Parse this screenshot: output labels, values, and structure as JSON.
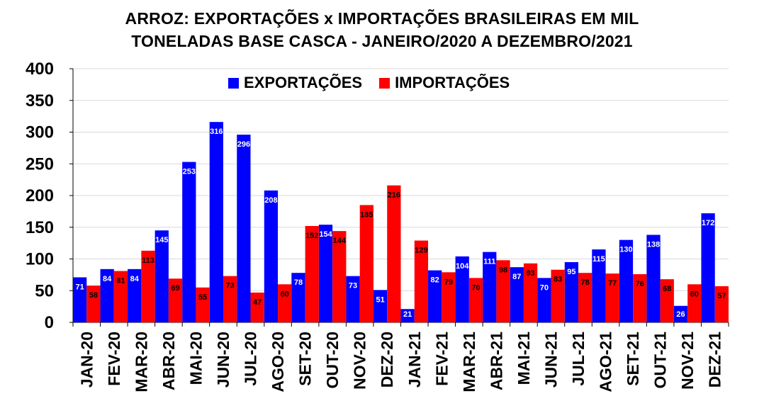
{
  "chart_data": {
    "type": "bar",
    "title_lines": [
      "ARROZ: EXPORTAÇÕES x IMPORTAÇÕES BRASILEIRAS EM MIL",
      "TONELADAS BASE CASCA - JANEIRO/2020 A DEZEMBRO/2021"
    ],
    "categories": [
      "JAN-20",
      "FEV-20",
      "MAR-20",
      "ABR-20",
      "MAI-20",
      "JUN-20",
      "JUL-20",
      "AGO-20",
      "SET-20",
      "OUT-20",
      "NOV-20",
      "DEZ-20",
      "JAN-21",
      "FEV-21",
      "MAR-21",
      "ABR-21",
      "MAI-21",
      "JUN-21",
      "JUL-21",
      "AGO-21",
      "SET-21",
      "OUT-21",
      "NOV-21",
      "DEZ-21"
    ],
    "series": [
      {
        "name": "EXPORTAÇÕES",
        "color": "#0000ff",
        "values": [
          71,
          84,
          84,
          145,
          253,
          316,
          296,
          208,
          78,
          154,
          73,
          51,
          21,
          82,
          104,
          111,
          87,
          70,
          95,
          115,
          130,
          138,
          26,
          172
        ]
      },
      {
        "name": "IMPORTAÇÕES",
        "color": "#ff0000",
        "values": [
          58,
          81,
          113,
          69,
          55,
          73,
          47,
          60,
          152,
          144,
          185,
          216,
          129,
          79,
          70,
          98,
          93,
          83,
          78,
          77,
          76,
          68,
          60,
          57
        ]
      }
    ],
    "ylim": [
      0,
      400
    ],
    "yticks": [
      0,
      50,
      100,
      150,
      200,
      250,
      300,
      350,
      400
    ],
    "grid": true,
    "legend_position": "top-center"
  }
}
